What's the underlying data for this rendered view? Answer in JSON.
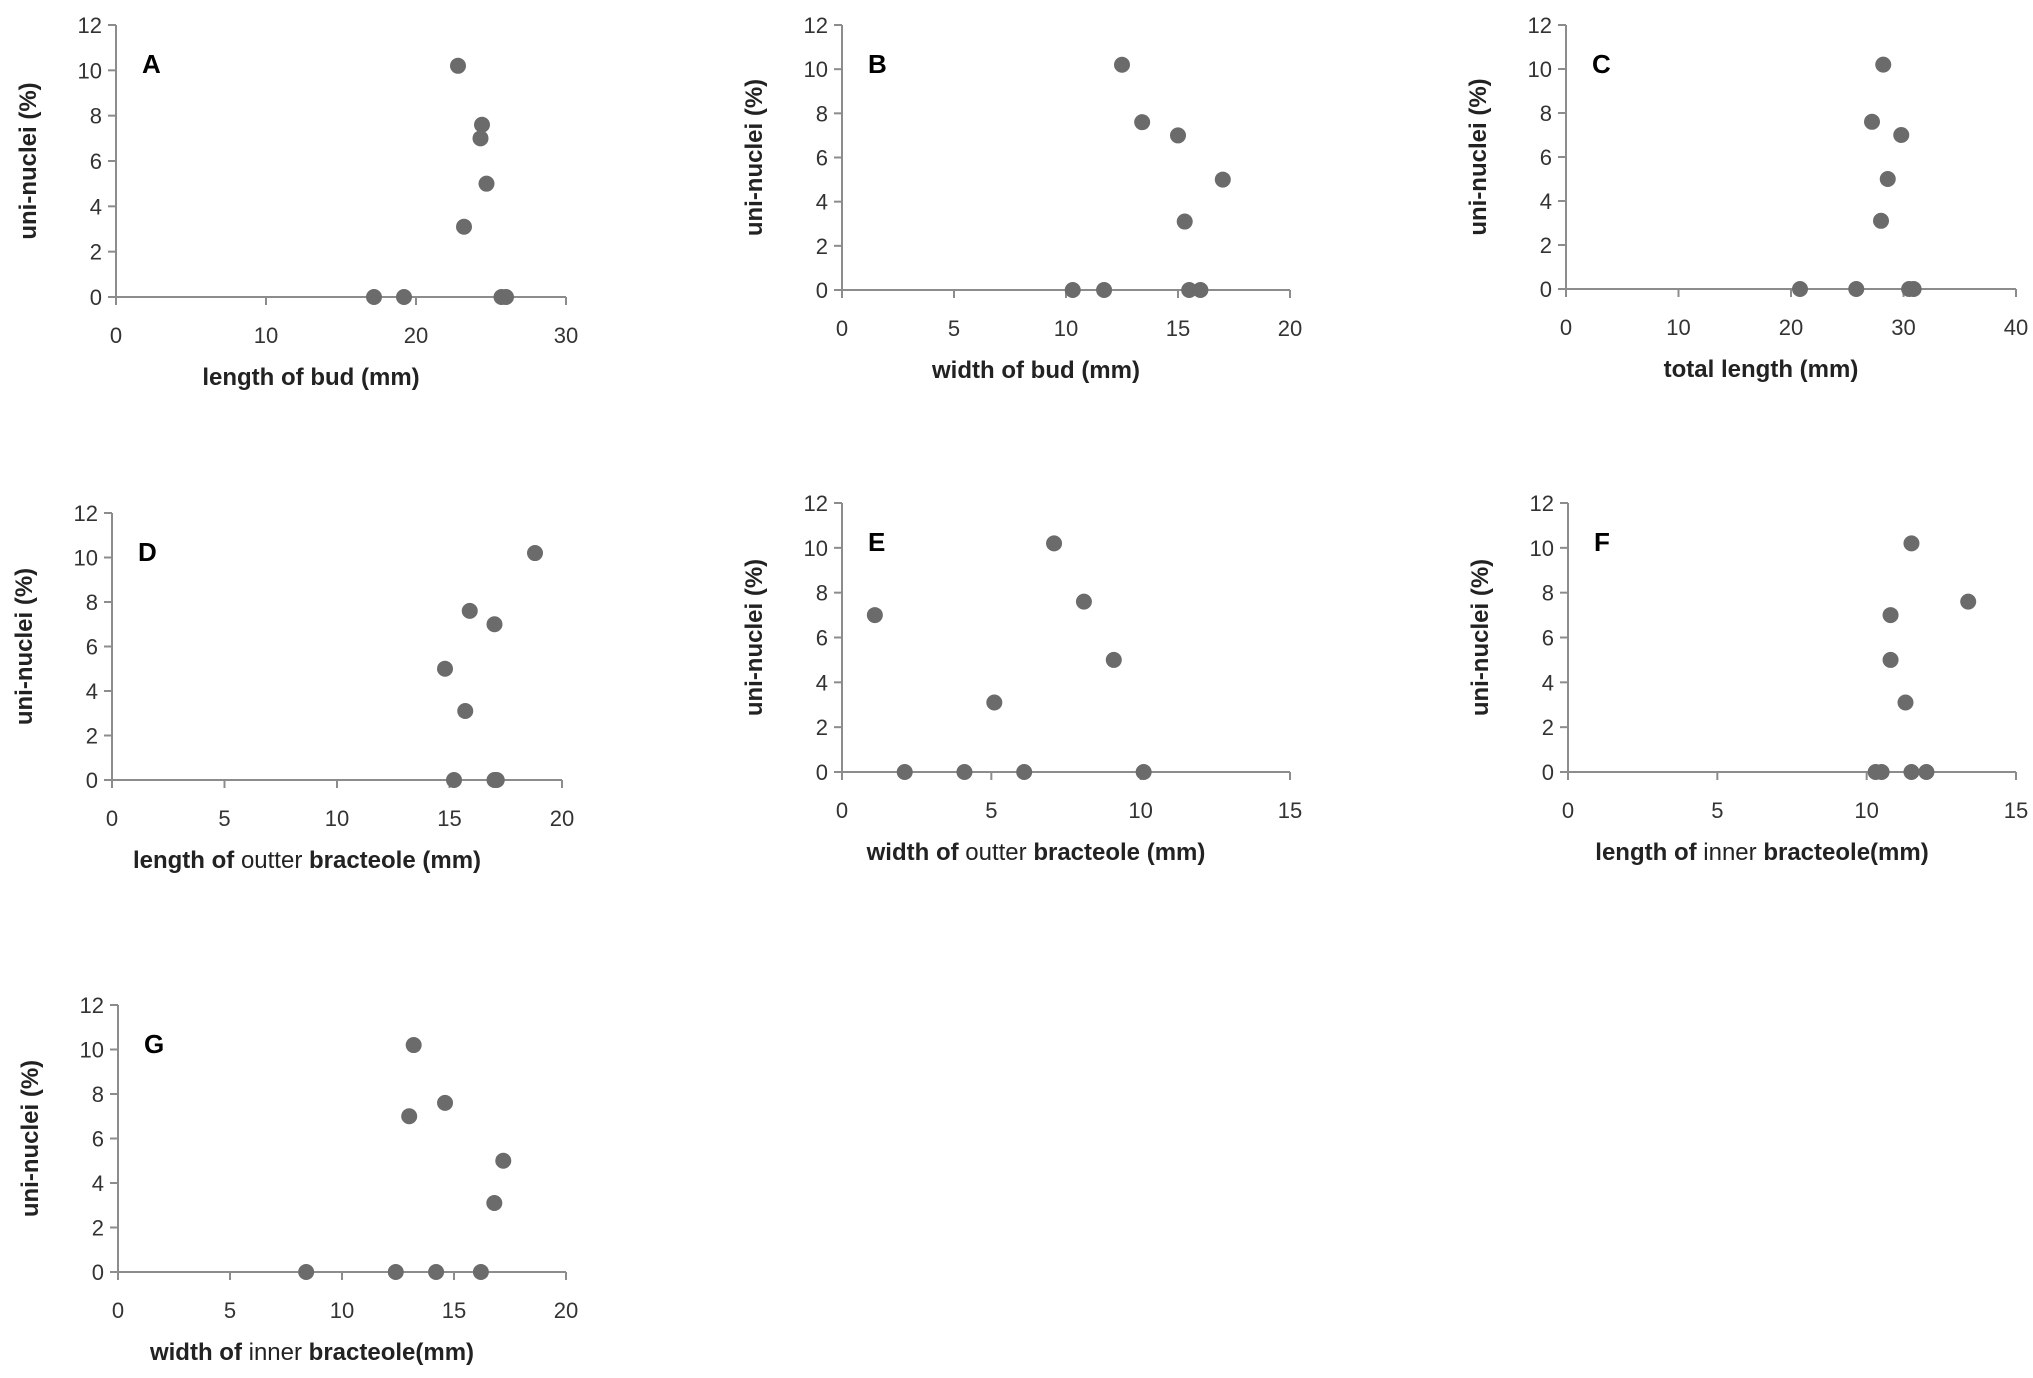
{
  "chart_data": [
    {
      "type": "scatter",
      "panel": "A",
      "xlabel": "length of bud (mm)",
      "ylabel": "uni-nuclei (%)",
      "xlim": [
        0,
        30
      ],
      "ylim": [
        0,
        12
      ],
      "xticks": [
        0,
        10,
        20,
        30
      ],
      "yticks": [
        0,
        2,
        4,
        6,
        8,
        10,
        12
      ],
      "points": [
        [
          22.8,
          10.2
        ],
        [
          24.4,
          7.6
        ],
        [
          24.3,
          7.0
        ],
        [
          24.7,
          5.0
        ],
        [
          23.2,
          3.1
        ],
        [
          17.2,
          0.0
        ],
        [
          19.2,
          0.0
        ],
        [
          25.7,
          0.0
        ],
        [
          26.0,
          0.0
        ]
      ]
    },
    {
      "type": "scatter",
      "panel": "B",
      "xlabel": "width of bud (mm)",
      "ylabel": "uni-nuclei (%)",
      "xlim": [
        0,
        20
      ],
      "ylim": [
        0,
        12
      ],
      "xticks": [
        0,
        5,
        10,
        15,
        20
      ],
      "yticks": [
        0,
        2,
        4,
        6,
        8,
        10,
        12
      ],
      "points": [
        [
          12.5,
          10.2
        ],
        [
          13.4,
          7.6
        ],
        [
          15.0,
          7.0
        ],
        [
          17.0,
          5.0
        ],
        [
          15.3,
          3.1
        ],
        [
          10.3,
          0.0
        ],
        [
          11.7,
          0.0
        ],
        [
          15.5,
          0.0
        ],
        [
          16.0,
          0.0
        ]
      ]
    },
    {
      "type": "scatter",
      "panel": "C",
      "xlabel": "total length (mm)",
      "ylabel": "uni-nuclei (%)",
      "xlim": [
        0,
        40
      ],
      "ylim": [
        0,
        12
      ],
      "xticks": [
        0,
        10,
        20,
        30,
        40
      ],
      "yticks": [
        0,
        2,
        4,
        6,
        8,
        10,
        12
      ],
      "points": [
        [
          28.2,
          10.2
        ],
        [
          27.2,
          7.6
        ],
        [
          29.8,
          7.0
        ],
        [
          28.6,
          5.0
        ],
        [
          28.0,
          3.1
        ],
        [
          20.8,
          0.0
        ],
        [
          25.8,
          0.0
        ],
        [
          30.5,
          0.0
        ],
        [
          30.9,
          0.0
        ]
      ]
    },
    {
      "type": "scatter",
      "panel": "D",
      "xlabel": "length of outter bracteole (mm)",
      "ylabel": "uni-nuclei (%)",
      "xlim": [
        0,
        20
      ],
      "ylim": [
        0,
        12
      ],
      "xticks": [
        0,
        5,
        10,
        15,
        20
      ],
      "yticks": [
        0,
        2,
        4,
        6,
        8,
        10,
        12
      ],
      "points": [
        [
          18.8,
          10.2
        ],
        [
          15.9,
          7.6
        ],
        [
          17.0,
          7.0
        ],
        [
          14.8,
          5.0
        ],
        [
          15.7,
          3.1
        ],
        [
          15.2,
          0.0
        ],
        [
          17.0,
          0.0
        ],
        [
          17.1,
          0.0
        ]
      ]
    },
    {
      "type": "scatter",
      "panel": "E",
      "xlabel": "width of outter bracteole (mm)",
      "ylabel": "uni-nuclei (%)",
      "xlim": [
        0,
        15
      ],
      "ylim": [
        0,
        12
      ],
      "xticks": [
        0,
        5,
        10,
        15
      ],
      "yticks": [
        0,
        2,
        4,
        6,
        8,
        10,
        12
      ],
      "points": [
        [
          7.1,
          10.2
        ],
        [
          8.1,
          7.6
        ],
        [
          1.1,
          7.0
        ],
        [
          9.1,
          5.0
        ],
        [
          5.1,
          3.1
        ],
        [
          2.1,
          0.0
        ],
        [
          4.1,
          0.0
        ],
        [
          6.1,
          0.0
        ],
        [
          10.1,
          0.0
        ]
      ]
    },
    {
      "type": "scatter",
      "panel": "F",
      "xlabel": "length of inner bracteole(mm)",
      "ylabel": "uni-nuclei (%)",
      "xlim": [
        0,
        15
      ],
      "ylim": [
        0,
        12
      ],
      "xticks": [
        0,
        5,
        10,
        15
      ],
      "yticks": [
        0,
        2,
        4,
        6,
        8,
        10,
        12
      ],
      "points": [
        [
          11.5,
          10.2
        ],
        [
          13.4,
          7.6
        ],
        [
          10.8,
          7.0
        ],
        [
          10.8,
          5.0
        ],
        [
          11.3,
          3.1
        ],
        [
          10.3,
          0.0
        ],
        [
          10.5,
          0.0
        ],
        [
          11.5,
          0.0
        ],
        [
          12.0,
          0.0
        ]
      ]
    },
    {
      "type": "scatter",
      "panel": "G",
      "xlabel": "width of inner bracteole(mm)",
      "ylabel": "uni-nuclei (%)",
      "xlim": [
        0,
        20
      ],
      "ylim": [
        0,
        12
      ],
      "xticks": [
        0,
        5,
        10,
        15,
        20
      ],
      "yticks": [
        0,
        2,
        4,
        6,
        8,
        10,
        12
      ],
      "points": [
        [
          13.2,
          10.2
        ],
        [
          14.6,
          7.6
        ],
        [
          13.0,
          7.0
        ],
        [
          17.2,
          5.0
        ],
        [
          16.8,
          3.1
        ],
        [
          8.4,
          0.0
        ],
        [
          12.4,
          0.0
        ],
        [
          14.2,
          0.0
        ],
        [
          16.2,
          0.0
        ]
      ]
    }
  ]
}
